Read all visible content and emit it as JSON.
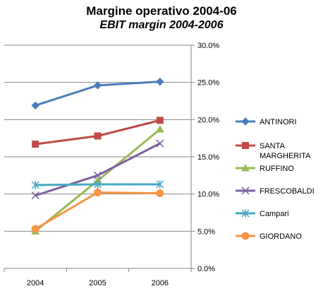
{
  "chart_data": {
    "type": "line",
    "title": "Margine operativo 2004-06",
    "subtitle": "EBIT margin 2004-2006",
    "x": [
      "2004",
      "2005",
      "2006"
    ],
    "ylim": [
      0,
      30
    ],
    "y_ticks": [
      "0.0%",
      "5.0%",
      "10.0%",
      "15.0%",
      "20.0%",
      "25.0%",
      "30.0%"
    ],
    "y_axis_side": "right",
    "grid": "horizontal",
    "legend_position": "right",
    "series": [
      {
        "name": "ANTINORI",
        "values": [
          21.9,
          24.6,
          25.1
        ],
        "color": "#4a7ebb",
        "marker": "diamond"
      },
      {
        "name": "SANTA MARGHERITA",
        "values": [
          16.7,
          17.8,
          19.9
        ],
        "color": "#be4b48",
        "marker": "square"
      },
      {
        "name": "RUFFINO",
        "values": [
          5.0,
          11.8,
          18.7
        ],
        "color": "#98b954",
        "marker": "triangle"
      },
      {
        "name": "FRESCOBALDI",
        "values": [
          9.8,
          12.5,
          16.8
        ],
        "color": "#7d60a0",
        "marker": "x"
      },
      {
        "name": "Campari",
        "values": [
          11.2,
          11.3,
          11.3
        ],
        "color": "#46aac5",
        "marker": "star"
      },
      {
        "name": "GIORDANO",
        "values": [
          5.3,
          10.2,
          10.1
        ],
        "color": "#f79646",
        "marker": "circle"
      }
    ]
  }
}
